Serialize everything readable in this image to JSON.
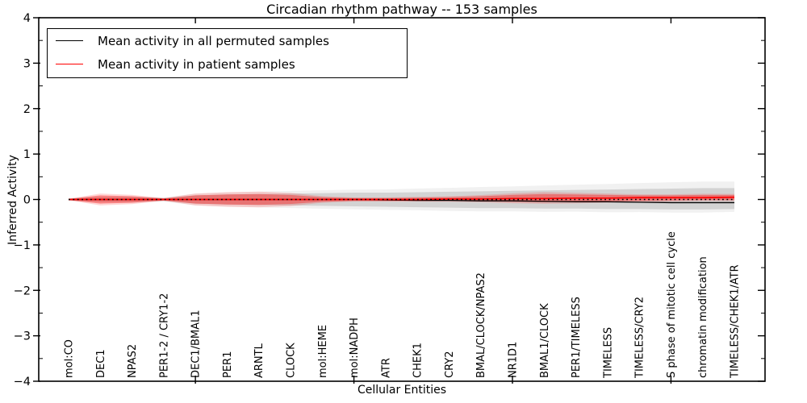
{
  "chart_data": {
    "type": "line",
    "title": "Circadian rhythm pathway -- 153 samples",
    "xlabel": "Cellular Entities",
    "ylabel": "Inferred Activity",
    "ylim": [
      -4,
      4
    ],
    "yticks": [
      4,
      3,
      2,
      1,
      0,
      -1,
      -2,
      -3,
      -4
    ],
    "y_minor_tick_step": 0.5,
    "x_major_tick_indices": [
      4,
      9,
      14,
      19
    ],
    "grid": false,
    "legend_position": "upper left",
    "zero_line": {
      "y": 0,
      "style": "dotted",
      "color": "#000000"
    },
    "categories": [
      "mol:CO",
      "DEC1",
      "NPAS2",
      "PER1-2 / CRY1-2",
      "DEC1/BMAL1",
      "PER1",
      "ARNTL",
      "CLOCK",
      "mol:HEME",
      "mol:NADPH",
      "ATR",
      "CHEK1",
      "CRY2",
      "BMAL/CLOCK/NPAS2",
      "NR1D1",
      "BMAL1/CLOCK",
      "PER1/TIMELESS",
      "TIMELESS",
      "TIMELESS/CRY2",
      "S phase of mitotic cell cycle",
      "chromatin modification",
      "TIMELESS/CHEK1/ATR"
    ],
    "series": [
      {
        "name": "Mean activity in all permuted samples",
        "color": "#000000",
        "line_style": "solid",
        "band_color": "#000000",
        "band_alpha": 0.12,
        "values": [
          0,
          0,
          0,
          0,
          0,
          0,
          0,
          0,
          0,
          0,
          -0.01,
          -0.02,
          -0.02,
          -0.03,
          -0.03,
          -0.04,
          -0.05,
          -0.05,
          -0.06,
          -0.07,
          -0.07,
          -0.07
        ],
        "band_low": [
          -0.02,
          -0.05,
          -0.05,
          -0.03,
          -0.09,
          -0.11,
          -0.12,
          -0.13,
          -0.14,
          -0.15,
          -0.16,
          -0.17,
          -0.18,
          -0.19,
          -0.19,
          -0.2,
          -0.2,
          -0.21,
          -0.21,
          -0.22,
          -0.22,
          -0.21
        ],
        "band_high": [
          0.02,
          0.05,
          0.05,
          0.03,
          0.09,
          0.11,
          0.12,
          0.13,
          0.14,
          0.15,
          0.15,
          0.16,
          0.17,
          0.18,
          0.19,
          0.2,
          0.21,
          0.22,
          0.23,
          0.24,
          0.25,
          0.25
        ]
      },
      {
        "name": "Mean activity in patient samples",
        "color": "#ff0000",
        "line_style": "solid",
        "band_color": "#ff0000",
        "band_alpha": 0.35,
        "values": [
          0,
          0,
          0,
          0,
          0,
          0,
          0,
          0,
          0,
          0,
          0,
          0,
          0.01,
          0.01,
          0.02,
          0.02,
          0.03,
          0.03,
          0.04,
          0.04,
          0.04,
          0.05
        ],
        "band_low": [
          -0.01,
          -0.09,
          -0.07,
          -0.02,
          -0.09,
          -0.11,
          -0.12,
          -0.1,
          -0.05,
          -0.03,
          -0.03,
          -0.03,
          -0.03,
          -0.04,
          -0.05,
          -0.06,
          -0.05,
          -0.04,
          -0.03,
          -0.02,
          -0.01,
          -0.01
        ],
        "band_high": [
          0.01,
          0.09,
          0.07,
          0.02,
          0.09,
          0.11,
          0.12,
          0.1,
          0.05,
          0.03,
          0.03,
          0.04,
          0.05,
          0.07,
          0.1,
          0.12,
          0.11,
          0.1,
          0.09,
          0.09,
          0.1,
          0.1
        ]
      }
    ]
  }
}
